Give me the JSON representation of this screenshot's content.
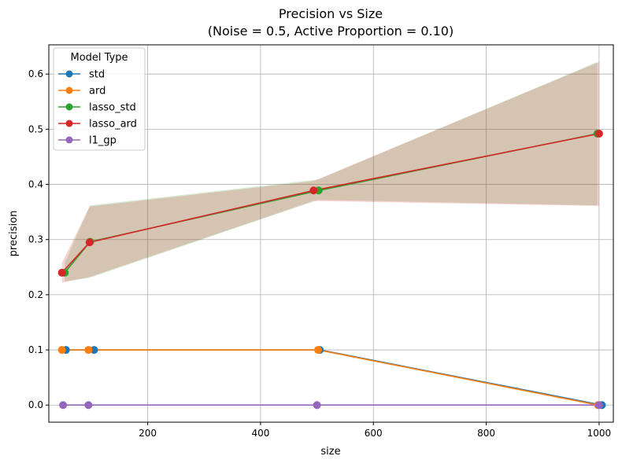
{
  "chart_data": {
    "type": "line",
    "title_line1": "Precision vs Size",
    "title_line2": "(Noise = 0.5, Active Proportion = 0.10)",
    "xlabel": "size",
    "ylabel": "precision",
    "xlim": [
      24.75,
      1025.25
    ],
    "ylim": [
      -0.031,
      0.653
    ],
    "xticks": [
      200,
      400,
      600,
      800,
      1000
    ],
    "xtick_labels": [
      "200",
      "400",
      "600",
      "800",
      "1000"
    ],
    "yticks": [
      0.0,
      0.1,
      0.2,
      0.3,
      0.4,
      0.5,
      0.6
    ],
    "ytick_labels": [
      "0.0",
      "0.1",
      "0.2",
      "0.3",
      "0.4",
      "0.5",
      "0.6"
    ],
    "grid": true,
    "legend": {
      "title": "Model Type",
      "placement": "top-left"
    },
    "series": [
      {
        "name": "std",
        "color": "#1f77b4",
        "x": [
          55,
          105,
          505,
          1005
        ],
        "y": [
          0.1,
          0.1,
          0.1,
          0.0
        ],
        "band_lower": null,
        "band_upper": null
      },
      {
        "name": "ard",
        "color": "#ff7f0e",
        "x": [
          48,
          95,
          502,
          998
        ],
        "y": [
          0.1,
          0.1,
          0.1,
          0.0
        ],
        "band_lower": null,
        "band_upper": null
      },
      {
        "name": "lasso_std",
        "color": "#2ca02c",
        "x": [
          53,
          98,
          503,
          997
        ],
        "y": [
          0.24,
          0.296,
          0.389,
          0.492
        ],
        "band_lower": [
          0.224,
          0.231,
          0.372,
          0.362
        ],
        "band_upper": [
          0.258,
          0.362,
          0.409,
          0.622
        ]
      },
      {
        "name": "lasso_ard",
        "color": "#d62728",
        "x": [
          48,
          97,
          494,
          1000
        ],
        "y": [
          0.24,
          0.295,
          0.389,
          0.492
        ],
        "band_lower": [
          0.222,
          0.232,
          0.37,
          0.361
        ],
        "band_upper": [
          0.258,
          0.36,
          0.406,
          0.622
        ]
      },
      {
        "name": "l1_gp",
        "color": "#9467bd",
        "x": [
          50,
          95,
          500,
          1000
        ],
        "y": [
          0.0,
          0.0,
          0.0,
          0.0
        ],
        "band_lower": null,
        "band_upper": null
      }
    ]
  }
}
